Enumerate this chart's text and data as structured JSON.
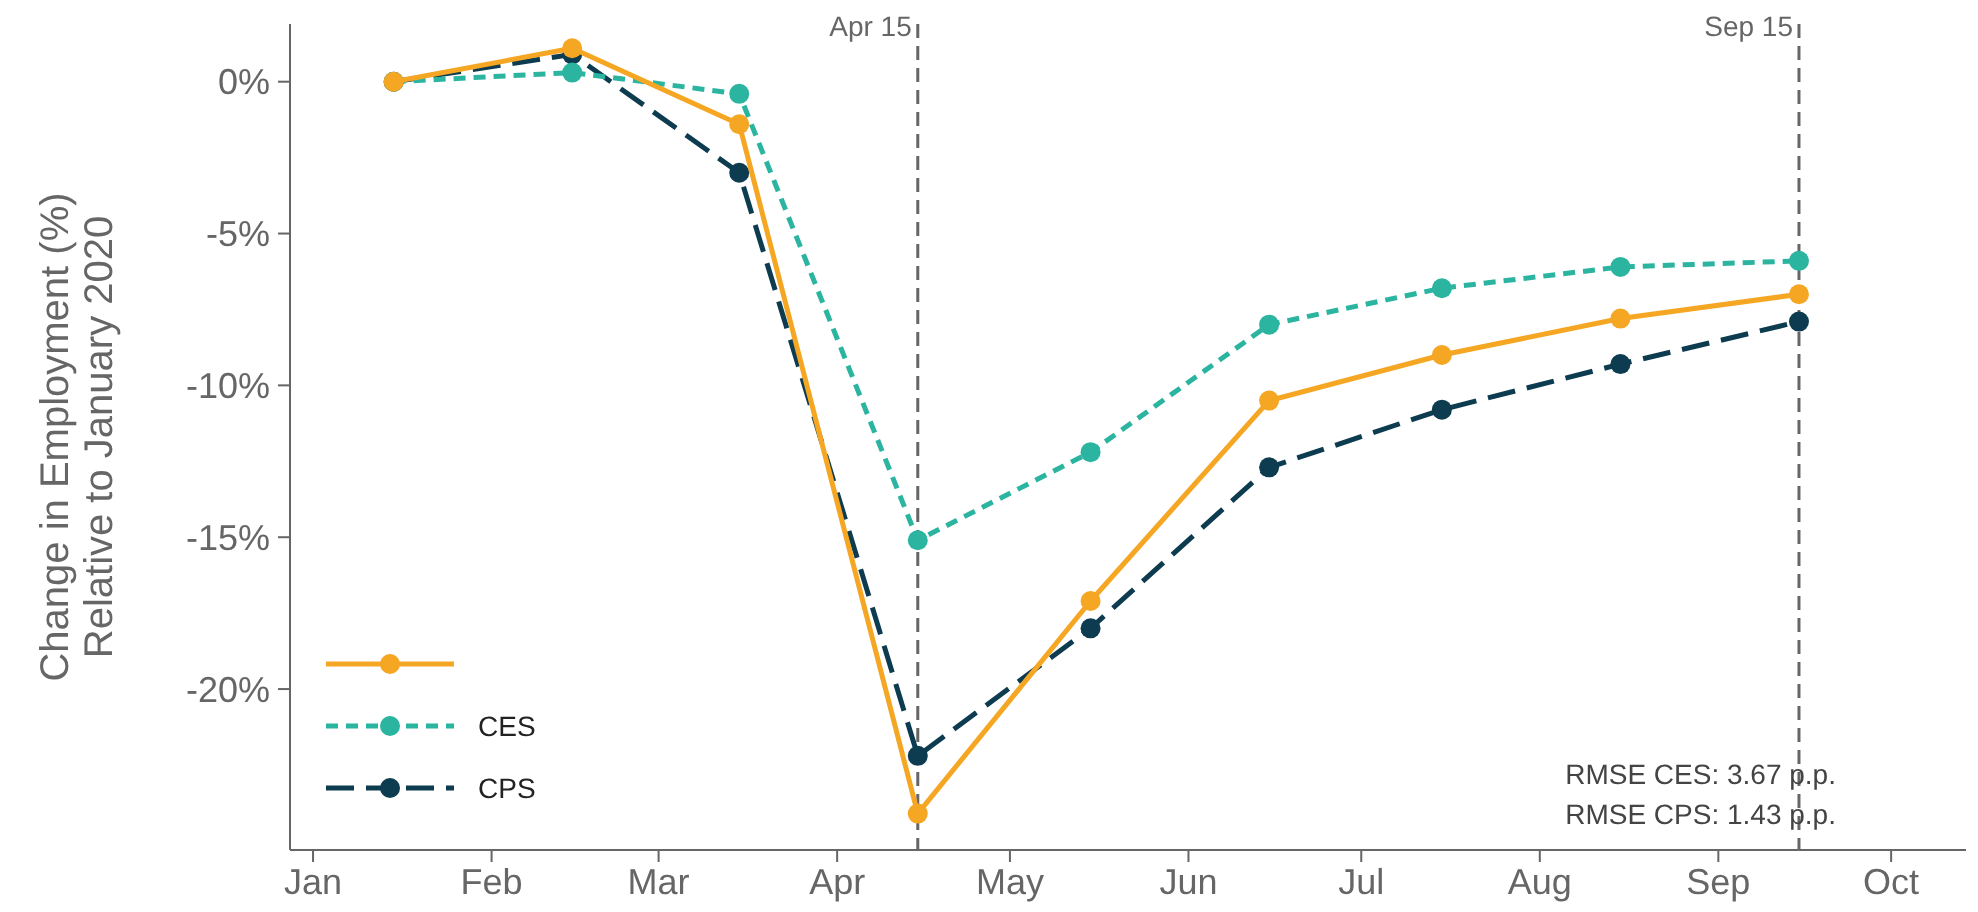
{
  "chart_data": {
    "type": "line",
    "ylabel": "Change in Employment (%)\nRelative to January 2020",
    "x": [
      "2020-01-15",
      "2020-02-15",
      "2020-03-15",
      "2020-04-15",
      "2020-05-15",
      "2020-06-15",
      "2020-07-15",
      "2020-08-15",
      "2020-09-15"
    ],
    "series": [
      {
        "color": "#f5a623",
        "line_style": "solid",
        "values": [
          0,
          1.1,
          -1.4,
          -24.1,
          -17.1,
          -10.5,
          -9.0,
          -7.8,
          -7.0
        ]
      },
      {
        "name": "CES",
        "color": "#2bb5a0",
        "line_style": "dashed",
        "values": [
          0,
          0.3,
          -0.4,
          -15.1,
          -12.2,
          -8.0,
          -6.8,
          -6.1,
          -5.9
        ]
      },
      {
        "name": "CPS",
        "color": "#0d3b4f",
        "line_style": "dashed",
        "values": [
          0,
          0.9,
          -3.0,
          -22.2,
          -18.0,
          -12.7,
          -10.8,
          -9.3,
          -7.9
        ]
      }
    ],
    "xlim": [
      "2019-12-28",
      "2020-10-14"
    ],
    "xticks": [
      {
        "value": "2020-01-01",
        "label": "Jan"
      },
      {
        "value": "2020-02-01",
        "label": "Feb"
      },
      {
        "value": "2020-03-01",
        "label": "Mar"
      },
      {
        "value": "2020-04-01",
        "label": "Apr"
      },
      {
        "value": "2020-05-01",
        "label": "May"
      },
      {
        "value": "2020-06-01",
        "label": "Jun"
      },
      {
        "value": "2020-07-01",
        "label": "Jul"
      },
      {
        "value": "2020-08-01",
        "label": "Aug"
      },
      {
        "value": "2020-09-01",
        "label": "Sep"
      },
      {
        "value": "2020-10-01",
        "label": "Oct"
      }
    ],
    "ylim": [
      -25.3,
      1.9
    ],
    "yticks": [
      {
        "value": 0,
        "label": "0%"
      },
      {
        "value": -5,
        "label": "-5%"
      },
      {
        "value": -10,
        "label": "-10%"
      },
      {
        "value": -15,
        "label": "-15%"
      },
      {
        "value": -20,
        "label": "-20%"
      }
    ],
    "ref_lines": [
      {
        "axis": "x",
        "value": "2020-04-15",
        "label": "Apr 15",
        "color": "#666666",
        "line_style": "dashed"
      },
      {
        "axis": "x",
        "value": "2020-09-15",
        "label": "Sep 15",
        "color": "#666666",
        "line_style": "dashed"
      }
    ],
    "annotations": [
      "RMSE CES: 3.67 p.p.",
      "RMSE CPS: 1.43 p.p."
    ],
    "marker": "circle",
    "grid": false,
    "legend": "bottom left"
  }
}
